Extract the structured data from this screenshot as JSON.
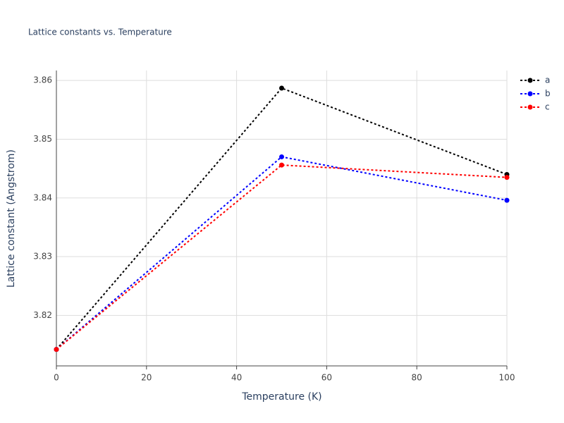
{
  "chart_data": {
    "type": "line",
    "title": "Lattice constants vs. Temperature",
    "x_label": "Temperature (K)",
    "y_label": "Lattice constant (Angstrom)",
    "x": [
      0,
      50,
      100
    ],
    "series": [
      {
        "name": "a",
        "color": "#000000",
        "values": [
          3.8142,
          3.8587,
          3.844
        ]
      },
      {
        "name": "b",
        "color": "#0000ff",
        "values": [
          3.8142,
          3.847,
          3.8396
        ]
      },
      {
        "name": "c",
        "color": "#ff0000",
        "values": [
          3.8142,
          3.8456,
          3.8435
        ]
      }
    ],
    "xlim": [
      0,
      100
    ],
    "xticks": [
      0,
      20,
      40,
      60,
      80,
      100
    ],
    "ylim": [
      3.8114,
      3.8617
    ],
    "yticks": [
      3.82,
      3.83,
      3.84,
      3.85,
      3.86
    ],
    "grid": true,
    "line_style": "dotted",
    "legend": "top-right"
  }
}
